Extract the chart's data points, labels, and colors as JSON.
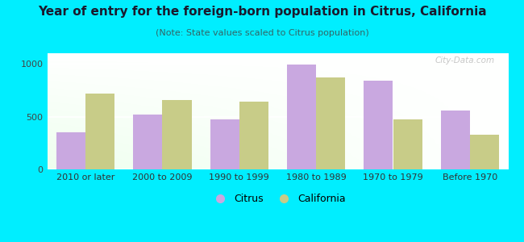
{
  "title": "Year of entry for the foreign-born population in Citrus, California",
  "subtitle": "(Note: State values scaled to Citrus population)",
  "categories": [
    "2010 or later",
    "2000 to 2009",
    "1990 to 1999",
    "1980 to 1989",
    "1970 to 1979",
    "Before 1970"
  ],
  "citrus_values": [
    350,
    520,
    470,
    990,
    840,
    560
  ],
  "california_values": [
    720,
    660,
    640,
    870,
    470,
    330
  ],
  "citrus_color": "#c9a8e0",
  "california_color": "#c8cc88",
  "background_outer": "#00eeff",
  "ylim": [
    0,
    1100
  ],
  "yticks": [
    0,
    500,
    1000
  ],
  "bar_width": 0.38,
  "figsize": [
    6.5,
    3.0
  ],
  "dpi": 100,
  "title_fontsize": 11,
  "subtitle_fontsize": 8,
  "tick_fontsize": 8,
  "legend_fontsize": 9
}
